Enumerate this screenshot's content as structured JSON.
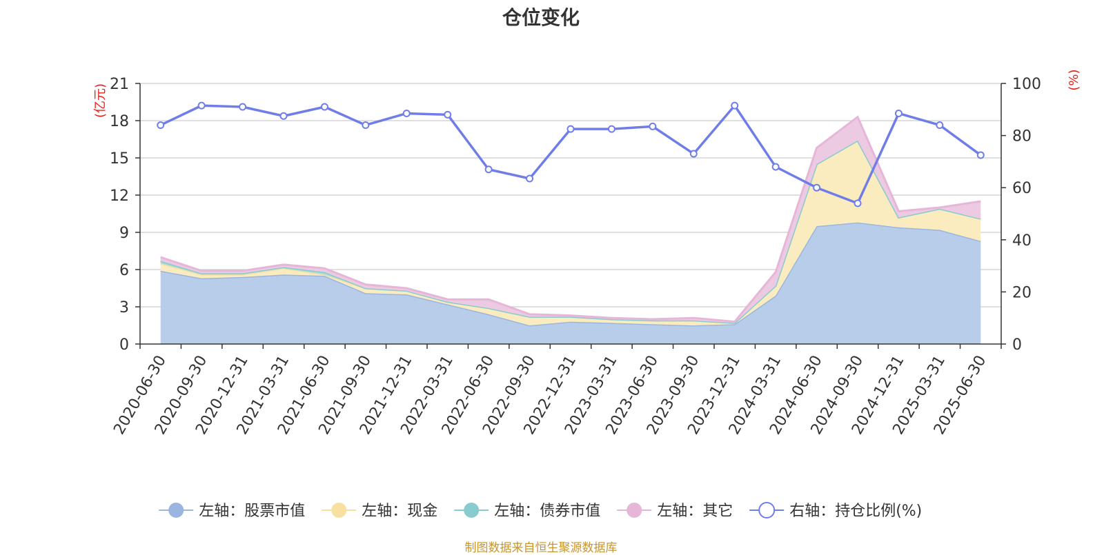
{
  "chart_data": {
    "type": "area",
    "title": "仓位变化",
    "source": "制图数据来自恒生聚源数据库",
    "left_axis": {
      "unit": "(亿元)",
      "min": 0,
      "max": 21,
      "ticks": [
        0,
        3,
        6,
        9,
        12,
        15,
        18,
        21
      ]
    },
    "right_axis": {
      "unit": "(%)",
      "min": 0,
      "max": 100,
      "ticks": [
        0,
        20,
        40,
        60,
        80,
        100
      ]
    },
    "categories": [
      "2020-06-30",
      "2020-09-30",
      "2020-12-31",
      "2021-03-31",
      "2021-06-30",
      "2021-09-30",
      "2021-12-31",
      "2022-03-31",
      "2022-06-30",
      "2022-09-30",
      "2022-12-31",
      "2023-03-31",
      "2023-06-30",
      "2023-09-30",
      "2023-12-31",
      "2024-03-31",
      "2024-06-30",
      "2024-09-30",
      "2024-12-31",
      "2025-03-31",
      "2025-06-30"
    ],
    "grid": true,
    "legend_position": "bottom",
    "stacked_series": [
      {
        "name": "左轴：股票市值",
        "axis": "left",
        "color": "#9ab5e0",
        "fill": "#b8cdea",
        "values": [
          5.9,
          5.3,
          5.4,
          5.6,
          5.5,
          4.1,
          4.0,
          3.2,
          2.4,
          1.5,
          1.8,
          1.7,
          1.6,
          1.5,
          1.6,
          3.9,
          9.5,
          9.8,
          9.4,
          9.2,
          8.3
        ]
      },
      {
        "name": "左轴：现金",
        "axis": "left",
        "color": "#f8e0a0",
        "fill": "#fbecbf",
        "values": [
          0.6,
          0.3,
          0.2,
          0.5,
          0.1,
          0.4,
          0.3,
          0.2,
          0.5,
          0.7,
          0.4,
          0.3,
          0.3,
          0.4,
          0.1,
          0.8,
          5.0,
          6.6,
          0.8,
          1.7,
          1.8
        ]
      },
      {
        "name": "左轴：债券市值",
        "axis": "left",
        "color": "#88ccd0",
        "fill": "#a6dcd9",
        "values": [
          0.2,
          0.1,
          0.1,
          0.1,
          0.2,
          0,
          0,
          0,
          0,
          0,
          0,
          0,
          0,
          0,
          0,
          0,
          0,
          0,
          0,
          0,
          0
        ]
      },
      {
        "name": "左轴：其它",
        "axis": "left",
        "color": "#e6b6d8",
        "fill": "#eccae2",
        "values": [
          0.3,
          0.2,
          0.2,
          0.2,
          0.3,
          0.3,
          0.2,
          0.2,
          0.7,
          0.2,
          0.1,
          0.1,
          0.1,
          0.2,
          0.1,
          1.1,
          1.3,
          1.9,
          0.5,
          0.1,
          1.4
        ]
      }
    ],
    "line_series": [
      {
        "name": "右轴：持仓比例(%)",
        "axis": "right",
        "color": "#6f7de8",
        "values": [
          84,
          91.5,
          91,
          87.5,
          91,
          84,
          88.5,
          88,
          67,
          63.5,
          82.5,
          82.5,
          83.5,
          73,
          91.5,
          68,
          60,
          54,
          88.5,
          84,
          72.5
        ]
      }
    ]
  }
}
